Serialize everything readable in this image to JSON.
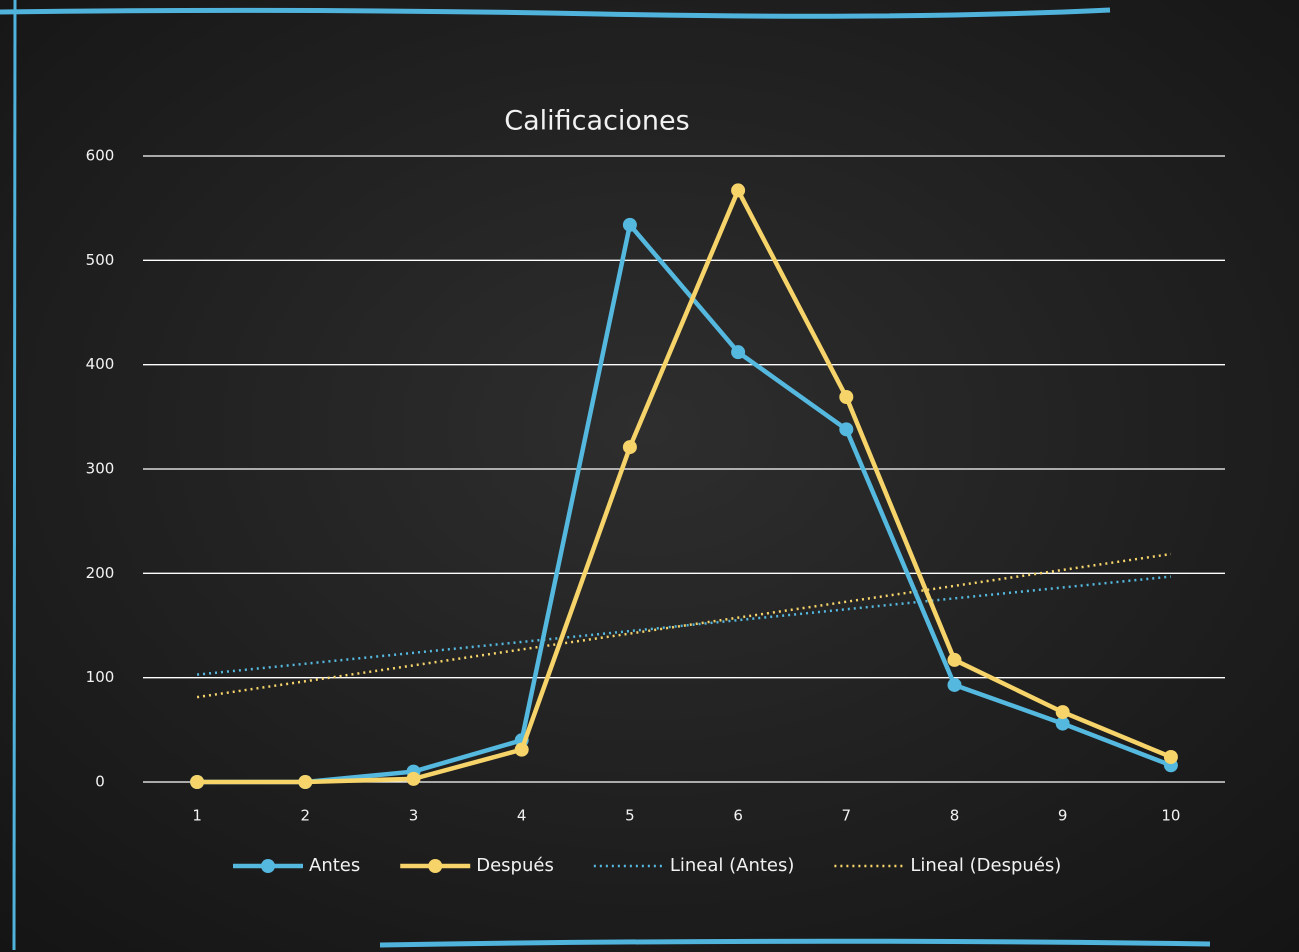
{
  "chart_data": {
    "type": "line",
    "title": "Calificaciones",
    "categories": [
      "1",
      "2",
      "3",
      "4",
      "5",
      "6",
      "7",
      "8",
      "9",
      "10"
    ],
    "series": [
      {
        "name": "Antes",
        "color": "#55b8df",
        "values": [
          0,
          0,
          10,
          40,
          534,
          412,
          338,
          93,
          56,
          16
        ],
        "trendline": {
          "type": "linear",
          "name": "Lineal (Antes)"
        }
      },
      {
        "name": "Después",
        "color": "#f6d46a",
        "values": [
          0,
          0,
          3,
          31,
          321,
          567,
          369,
          117,
          67,
          24
        ],
        "trendline": {
          "type": "linear",
          "name": "Lineal (Después)"
        }
      }
    ],
    "ylim": [
      0,
      600
    ],
    "yticks": [
      0,
      100,
      200,
      300,
      400,
      500,
      600
    ],
    "grid": true,
    "legend": "bottom"
  }
}
